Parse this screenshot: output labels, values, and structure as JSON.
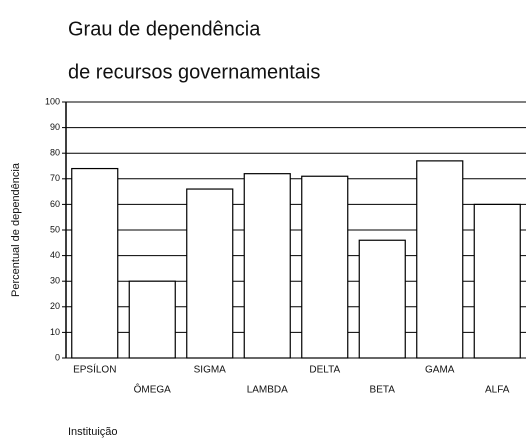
{
  "chart_data": {
    "type": "bar",
    "title": "Grau de dependência",
    "subtitle": "de recursos governamentais",
    "y_label": "Percentual de dependência",
    "x_label": "Instituição",
    "categories": [
      "EPSÍLON",
      "ÔMEGA",
      "SIGMA",
      "LAMBDA",
      "DELTA",
      "BETA",
      "GAMA",
      "ALFA"
    ],
    "values": [
      74,
      30,
      66,
      72,
      71,
      46,
      77,
      60
    ],
    "color": "#ffffff",
    "ylim": [
      0,
      100
    ],
    "yticks": [
      0,
      10,
      20,
      30,
      40,
      50,
      60,
      70,
      80,
      90,
      100
    ],
    "grid": true
  }
}
